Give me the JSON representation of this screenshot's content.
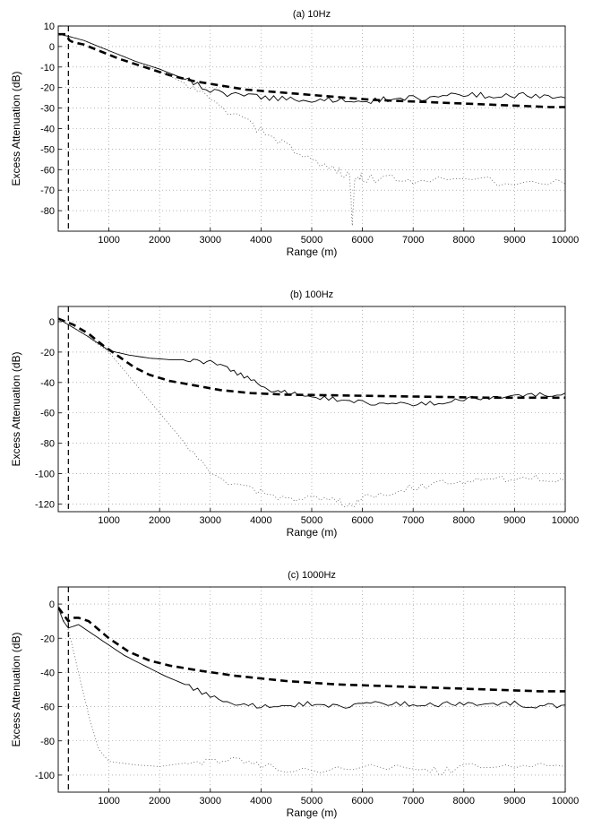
{
  "chart_data": [
    {
      "type": "line",
      "title": "(a) 10Hz",
      "xlabel": "Range (m)",
      "ylabel": "Excess Attenuation (dB)",
      "xlim": [
        0,
        10000
      ],
      "ylim": [
        -90,
        10
      ],
      "xticks": [
        1000,
        2000,
        3000,
        4000,
        5000,
        6000,
        7000,
        8000,
        9000,
        10000
      ],
      "yticks": [
        10,
        0,
        -10,
        -20,
        -30,
        -40,
        -50,
        -60,
        -70,
        -80
      ],
      "grid": true,
      "vline": 200,
      "series": [
        {
          "style": "solid",
          "x": [
            0,
            200,
            500,
            1000,
            1500,
            2000,
            2500,
            3000,
            3500,
            4000,
            4500,
            5000,
            5500,
            6000,
            6500,
            7000,
            7500,
            8000,
            8500,
            9000,
            9500,
            10000
          ],
          "y": [
            6,
            5,
            3,
            -2,
            -7,
            -11,
            -16,
            -21,
            -24,
            -25,
            -25.5,
            -26,
            -26,
            -26.5,
            -25.5,
            -25,
            -24.5,
            -24,
            -23.5,
            -24,
            -24,
            -25
          ]
        },
        {
          "style": "dashed",
          "x": [
            0,
            150,
            220,
            300,
            500,
            800,
            1200,
            1700,
            2200,
            2700,
            3200,
            3700,
            4200,
            4700,
            5200,
            5700,
            6200,
            6700,
            7200,
            7700,
            8200,
            8700,
            9200,
            9700,
            10000
          ],
          "y": [
            6,
            6,
            3,
            2,
            1,
            -2,
            -6,
            -10,
            -14,
            -17,
            -19,
            -21,
            -22,
            -23,
            -24,
            -25,
            -26,
            -26.5,
            -27,
            -27.5,
            -28,
            -28.5,
            -29,
            -29.5,
            -29.5
          ]
        },
        {
          "style": "dotted",
          "x": [
            0,
            500,
            1000,
            1500,
            2000,
            2500,
            3000,
            3500,
            4000,
            4500,
            5000,
            5500,
            5750,
            5800,
            5850,
            6000,
            6500,
            7000,
            8000,
            9000,
            10000
          ],
          "y": [
            6,
            3,
            -2,
            -7,
            -12,
            -18,
            -26,
            -34,
            -41,
            -48,
            -55,
            -60,
            -63,
            -88,
            -63,
            -64,
            -65,
            -65,
            -65,
            -66,
            -67
          ]
        }
      ]
    },
    {
      "type": "line",
      "title": "(b) 100Hz",
      "xlabel": "Range (m)",
      "ylabel": "Excess Attenuation (dB)",
      "xlim": [
        0,
        10000
      ],
      "ylim": [
        -125,
        10
      ],
      "xticks": [
        1000,
        2000,
        3000,
        4000,
        5000,
        6000,
        7000,
        8000,
        9000,
        10000
      ],
      "yticks": [
        0,
        -20,
        -40,
        -60,
        -80,
        -100,
        -120
      ],
      "grid": true,
      "vline": 200,
      "series": [
        {
          "style": "solid",
          "x": [
            0,
            300,
            600,
            1000,
            1400,
            1800,
            2200,
            2600,
            3000,
            3400,
            3800,
            4200,
            4600,
            5000,
            5500,
            6000,
            6500,
            7000,
            7500,
            8000,
            8500,
            9000,
            9500,
            10000
          ],
          "y": [
            2,
            -4,
            -10,
            -19,
            -22,
            -24,
            -25,
            -25,
            -27,
            -32,
            -38,
            -45,
            -47,
            -49,
            -51,
            -53,
            -54,
            -55,
            -53,
            -51,
            -50,
            -49,
            -48,
            -47
          ]
        },
        {
          "style": "dashed",
          "x": [
            0,
            300,
            600,
            900,
            1200,
            1500,
            1800,
            2200,
            2700,
            3200,
            3800,
            4500,
            5500,
            6500,
            7500,
            8500,
            9500,
            10000
          ],
          "y": [
            2,
            -2,
            -8,
            -16,
            -23,
            -30,
            -35,
            -39,
            -42,
            -45,
            -47,
            -48,
            -48.5,
            -49,
            -49.5,
            -50,
            -50,
            -50
          ]
        },
        {
          "style": "dotted",
          "x": [
            0,
            500,
            1000,
            1500,
            2000,
            2500,
            3000,
            3500,
            4000,
            4500,
            5000,
            5500,
            5800,
            6000,
            6500,
            7000,
            7500,
            8000,
            8500,
            9000,
            9500,
            10000
          ],
          "y": [
            2,
            -8,
            -20,
            -40,
            -60,
            -80,
            -100,
            -108,
            -112,
            -117,
            -115,
            -117,
            -122,
            -116,
            -113,
            -109,
            -107,
            -105,
            -104,
            -103,
            -103,
            -105
          ]
        }
      ]
    },
    {
      "type": "line",
      "title": "(c) 1000Hz",
      "xlabel": "Range (m)",
      "ylabel": "Excess Attenuation (dB)",
      "xlim": [
        0,
        10000
      ],
      "ylim": [
        -110,
        10
      ],
      "xticks": [
        1000,
        2000,
        3000,
        4000,
        5000,
        6000,
        7000,
        8000,
        9000,
        10000
      ],
      "yticks": [
        0,
        -20,
        -40,
        -60,
        -80,
        -100
      ],
      "grid": true,
      "vline": 200,
      "series": [
        {
          "style": "solid",
          "x": [
            0,
            100,
            200,
            400,
            700,
            1000,
            1300,
            1700,
            2100,
            2500,
            3000,
            3500,
            4000,
            4500,
            5000,
            5500,
            6000,
            6500,
            7000,
            7500,
            8000,
            8500,
            9000,
            9500,
            10000
          ],
          "y": [
            -2,
            -10,
            -14,
            -12,
            -18,
            -24,
            -30,
            -36,
            -42,
            -47,
            -54,
            -58,
            -60,
            -59,
            -58,
            -60,
            -58,
            -59,
            -58,
            -59,
            -58,
            -59,
            -58,
            -60,
            -59
          ]
        },
        {
          "style": "dashed",
          "x": [
            0,
            100,
            200,
            300,
            400,
            600,
            800,
            1000,
            1200,
            1400,
            1800,
            2200,
            2800,
            3500,
            4500,
            5500,
            6500,
            7500,
            8500,
            9500,
            10000
          ],
          "y": [
            -2,
            -6,
            -10,
            -8,
            -8,
            -10,
            -15,
            -20,
            -24,
            -28,
            -33,
            -36,
            -39,
            -42,
            -45,
            -47,
            -48,
            -49,
            -50,
            -51,
            -51
          ]
        },
        {
          "style": "dotted",
          "x": [
            0,
            200,
            400,
            600,
            800,
            1000,
            1500,
            2000,
            2500,
            3000,
            3500,
            4000,
            5000,
            6000,
            7000,
            7500,
            8000,
            9000,
            10000
          ],
          "y": [
            -3,
            -15,
            -40,
            -65,
            -85,
            -92,
            -94,
            -95,
            -93,
            -92,
            -90,
            -94,
            -98,
            -96,
            -95,
            -98,
            -96,
            -94,
            -95
          ]
        }
      ]
    }
  ]
}
